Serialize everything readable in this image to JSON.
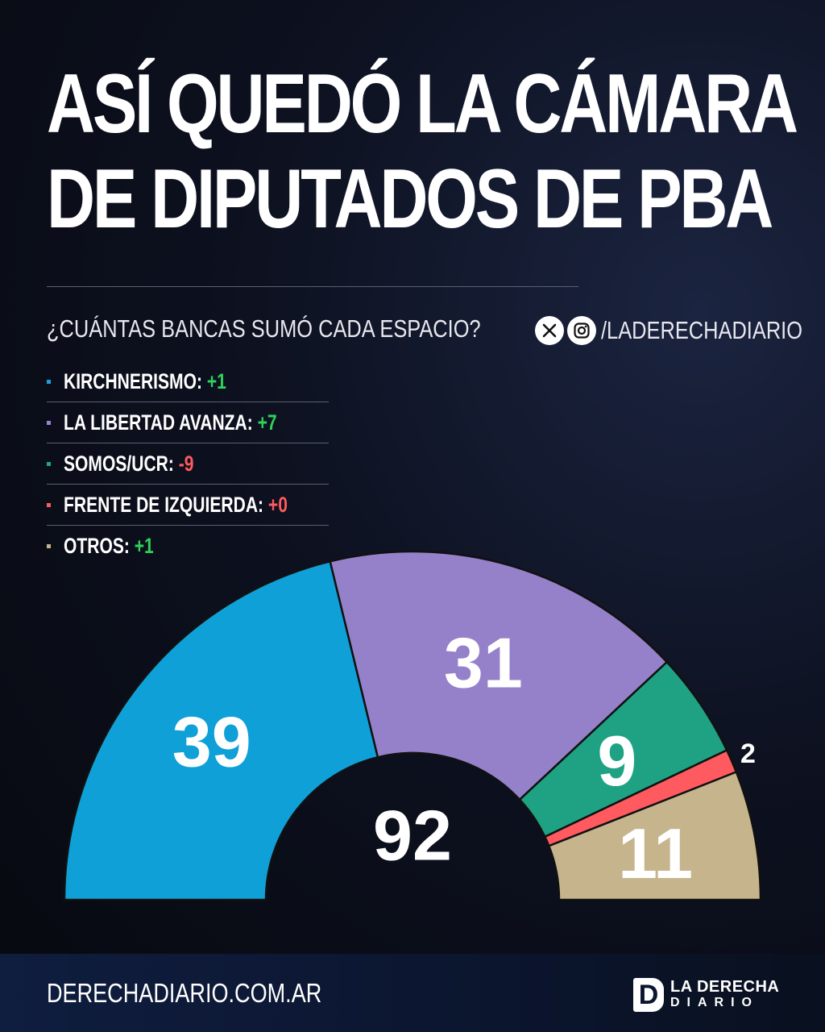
{
  "title": {
    "line1": "ASÍ QUEDÓ LA CÁMARA",
    "line2": "DE DIPUTADOS DE PBA"
  },
  "subtitle": "¿CUÁNTAS BANCAS SUMÓ CADA ESPACIO?",
  "social": {
    "icons": [
      "x-icon",
      "instagram-icon"
    ],
    "handle": "/LADERECHADIARIO"
  },
  "legend": [
    {
      "label": "KIRCHNERISMO:",
      "change": "+1",
      "color": "#1ea0d6",
      "change_color": "#2fd25a"
    },
    {
      "label": "LA LIBERTAD AVANZA:",
      "change": "+7",
      "color": "#9b82d0",
      "change_color": "#2fd25a"
    },
    {
      "label": "SOMOS/UCR:",
      "change": "-9",
      "color": "#23a585",
      "change_color": "#ff5a5f"
    },
    {
      "label": "FRENTE DE IZQUIERDA:",
      "change": "+0",
      "color": "#ff5a5f",
      "change_color": "#ff5a5f"
    },
    {
      "label": "OTROS:",
      "change": "+1",
      "color": "#c5b28e",
      "change_color": "#2fd25a"
    }
  ],
  "chart_data": {
    "type": "pie",
    "variant": "semicircle (parliament)",
    "total": "92",
    "slices": [
      {
        "label": "KIRCHNERISMO",
        "value": 39,
        "color": "#0fa0d8"
      },
      {
        "label": "LA LIBERTAD AVANZA",
        "value": 31,
        "color": "#9580ca"
      },
      {
        "label": "SOMOS/UCR",
        "value": 9,
        "color": "#1ea283"
      },
      {
        "label": "FRENTE DE IZQUIERDA",
        "value": 2,
        "color": "#ff5a5f"
      },
      {
        "label": "OTROS",
        "value": 11,
        "color": "#c6b48d"
      }
    ]
  },
  "footer": {
    "site": "DERECHADIARIO.COM.AR",
    "logo_mark": "D",
    "logo_line1": "LA DERECHA",
    "logo_line2": "DIARIO"
  }
}
